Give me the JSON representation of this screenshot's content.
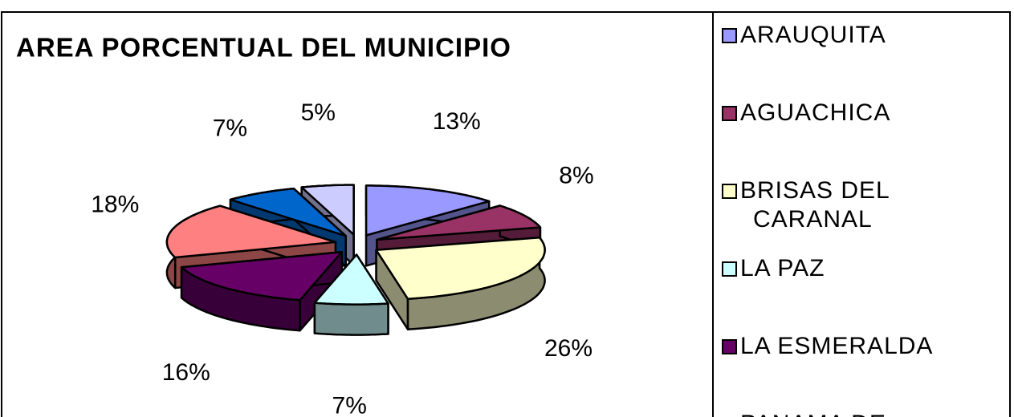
{
  "chart_data": {
    "type": "pie",
    "title": "AREA PORCENTUAL DEL MUNICIPIO",
    "categories": [
      "ARAUQUITA",
      "AGUACHICA",
      "BRISAS DEL CARANAL",
      "LA PAZ",
      "LA ESMERALDA",
      "PANAMA DE",
      null,
      null
    ],
    "values": [
      13,
      8,
      26,
      7,
      16,
      18,
      7,
      5
    ],
    "value_labels": [
      "13%",
      "8%",
      "26%",
      "7%",
      "16%",
      "18%",
      "7%",
      "5%"
    ],
    "colors": [
      "#9999ff",
      "#993366",
      "#ffffcc",
      "#ccffff",
      "#660066",
      "#ff8080",
      "#0066cc",
      "#ccccff"
    ],
    "legend": "right"
  }
}
